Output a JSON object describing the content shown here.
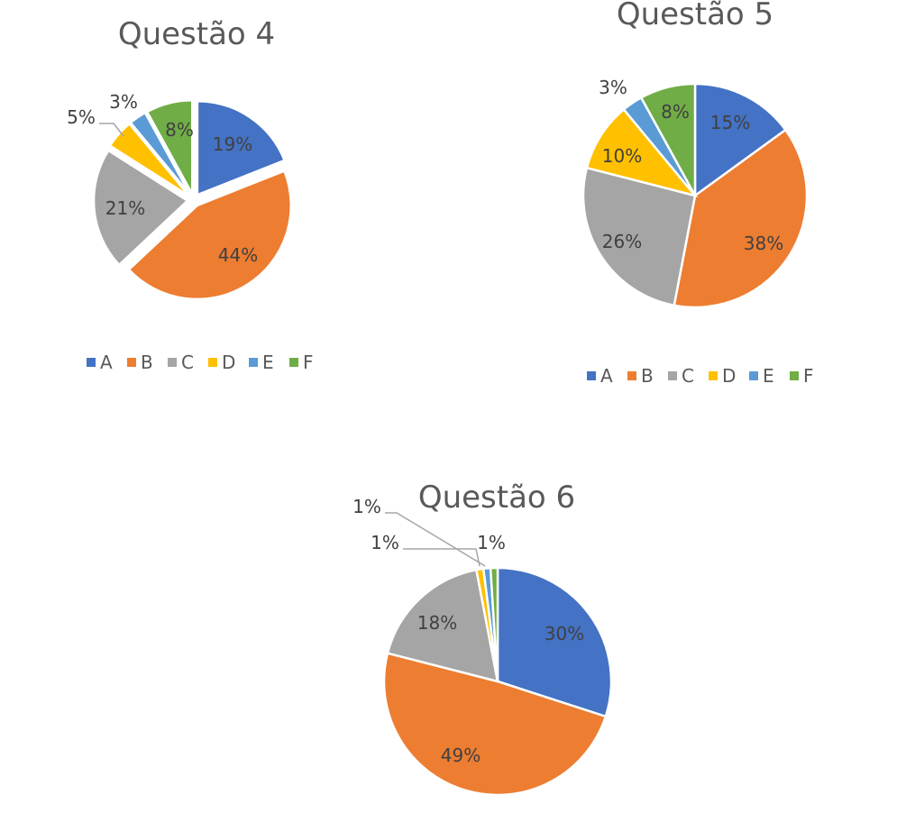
{
  "colors": {
    "A": "#4472C4",
    "B": "#ED7D31",
    "C": "#A5A5A5",
    "D": "#FFC000",
    "E": "#5B9BD5",
    "F": "#70AD47"
  },
  "chart_data": [
    {
      "type": "pie",
      "title": "Questão 4",
      "exploded": true,
      "categories": [
        "A",
        "B",
        "C",
        "D",
        "E",
        "F"
      ],
      "values": [
        19,
        44,
        21,
        5,
        3,
        8
      ],
      "labels": [
        "19%",
        "44%",
        "21%",
        "5%",
        "3%",
        "8%"
      ],
      "legend": "bottom"
    },
    {
      "type": "pie",
      "title": "Questão 5",
      "exploded": false,
      "categories": [
        "A",
        "B",
        "C",
        "D",
        "E",
        "F"
      ],
      "values": [
        15,
        38,
        26,
        10,
        3,
        8
      ],
      "labels": [
        "15%",
        "38%",
        "26%",
        "10%",
        "3%",
        "8%"
      ],
      "legend": "bottom"
    },
    {
      "type": "pie",
      "title": "Questão 6",
      "exploded": false,
      "categories": [
        "A",
        "B",
        "C",
        "D",
        "E",
        "F"
      ],
      "values": [
        30,
        49,
        18,
        1,
        1,
        1
      ],
      "labels": [
        "30%",
        "49%",
        "18%",
        "1%",
        "1%",
        "1%"
      ],
      "legend": "none"
    }
  ]
}
